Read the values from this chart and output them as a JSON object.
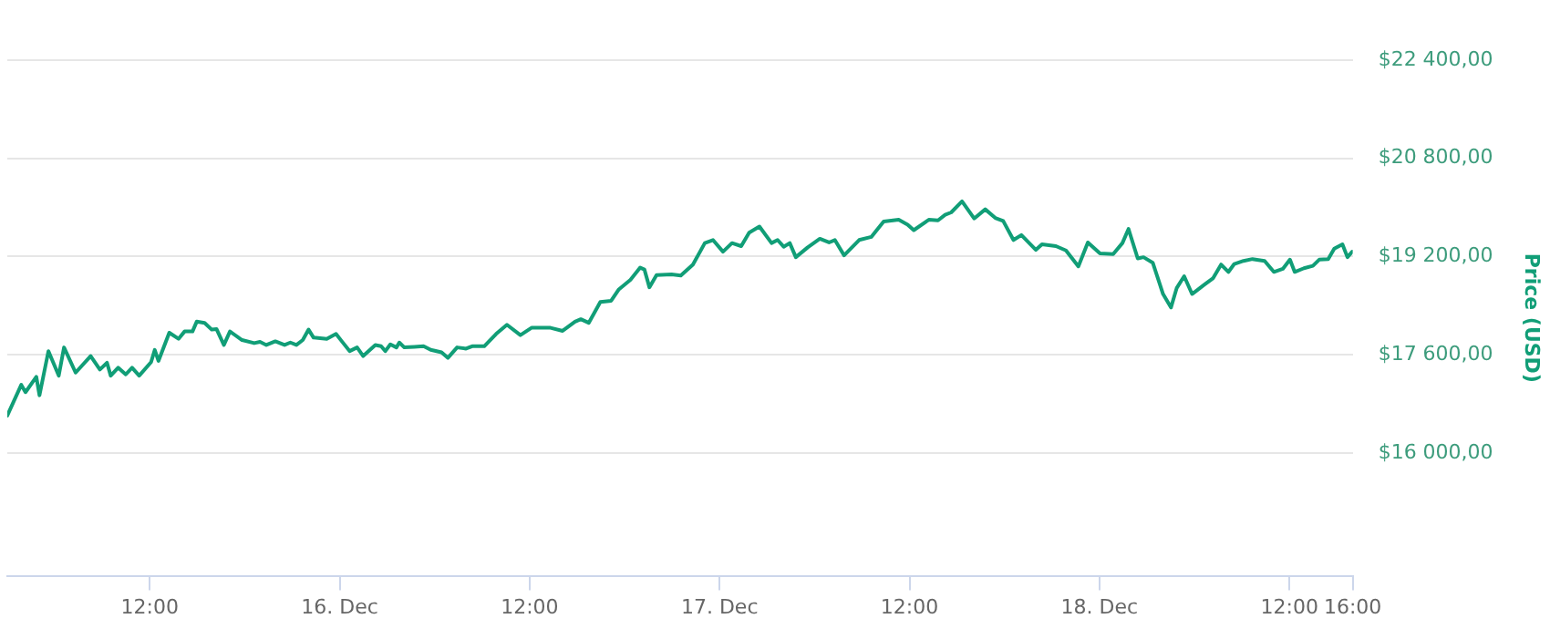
{
  "chart_data": {
    "type": "line",
    "y2label": "Price (USD)",
    "x": [
      "--12-15T03:00",
      "--12-15T03:53",
      "--12-15T04:09",
      "--12-15T04:50",
      "--12-15T05:02",
      "--12-15T05:36",
      "--12-15T06:15",
      "--12-15T06:35",
      "--12-15T07:19",
      "--12-15T08:16",
      "--12-15T08:51",
      "--12-15T09:18",
      "--12-15T09:32",
      "--12-15T10:00",
      "--12-15T10:29",
      "--12-15T10:53",
      "--12-15T11:20",
      "--12-15T12:05",
      "--12-15T12:19",
      "--12-15T12:33",
      "--12-15T13:14",
      "--12-15T13:49",
      "--12-15T14:12",
      "--12-15T14:42",
      "--12-15T14:58",
      "--12-15T15:28",
      "--12-15T15:55",
      "--12-15T16:13",
      "--12-15T16:41",
      "--12-15T17:04",
      "--12-15T17:50",
      "--12-15T18:36",
      "--12-15T18:58",
      "--12-15T19:22",
      "--12-15T19:56",
      "--12-15T20:31",
      "--12-15T20:53",
      "--12-15T21:16",
      "--12-15T21:40",
      "--12-15T22:02",
      "--12-15T22:21",
      "--12-15T23:11",
      "--12-15T23:46",
      "--12-16T00:08",
      "--12-16T00:38",
      "--12-16T01:06",
      "--12-16T01:29",
      "--12-16T02:15",
      "--12-16T02:37",
      "--12-16T02:53",
      "--12-16T03:12",
      "--12-16T03:35",
      "--12-16T03:46",
      "--12-16T04:05",
      "--12-16T04:43",
      "--12-16T05:18",
      "--12-16T05:45",
      "--12-16T06:26",
      "--12-16T06:50",
      "--12-16T07:25",
      "--12-16T07:59",
      "--12-16T08:22",
      "--12-16T09:08",
      "--12-16T09:53",
      "--12-16T10:34",
      "--12-16T11:25",
      "--12-16T12:07",
      "--12-16T13:19",
      "--12-16T14:05",
      "--12-16T14:52",
      "--12-16T15:14",
      "--12-16T15:44",
      "--12-16T16:28",
      "--12-16T17:09",
      "--12-16T17:37",
      "--12-16T18:22",
      "--12-16T18:59",
      "--12-16T19:15",
      "--12-16T19:34",
      "--12-16T20:01",
      "--12-16T20:58",
      "--12-16T21:33",
      "--12-16T22:19",
      "--12-16T23:04",
      "--12-16T23:35",
      "--12-17T00:13",
      "--12-17T00:47",
      "--12-17T01:22",
      "--12-17T01:52",
      "--12-17T02:31",
      "--12-17T03:17",
      "--12-17T03:40",
      "--12-17T04:03",
      "--12-17T04:26",
      "--12-17T04:49",
      "--12-17T05:34",
      "--12-17T06:20",
      "--12-17T06:55",
      "--12-17T07:17",
      "--12-17T07:52",
      "--12-17T08:49",
      "--12-17T09:35",
      "--12-17T10:22",
      "--12-17T11:19",
      "--12-17T11:53",
      "--12-17T12:16",
      "--12-17T13:13",
      "--12-17T13:48",
      "--12-17T14:15",
      "--12-17T14:38",
      "--12-17T15:19",
      "--12-17T16:05",
      "--12-17T16:47",
      "--12-17T17:25",
      "--12-17T17:55",
      "--12-17T18:34",
      "--12-17T19:04",
      "--12-17T19:59",
      "--12-17T20:22",
      "--12-17T21:15",
      "--12-17T21:53",
      "--12-17T22:40",
      "--12-17T23:16",
      "--12-18T00:02",
      "--12-18T00:52",
      "--12-18T01:27",
      "--12-18T01:50",
      "--12-18T02:25",
      "--12-18T02:47",
      "--12-18T03:22",
      "--12-18T04:01",
      "--12-18T04:31",
      "--12-18T04:53",
      "--12-18T05:21",
      "--12-18T05:51",
      "--12-18T06:37",
      "--12-18T07:11",
      "--12-18T07:41",
      "--12-18T08:09",
      "--12-18T08:31",
      "--12-18T09:06",
      "--12-18T09:40",
      "--12-18T10:26",
      "--12-18T11:01",
      "--12-18T11:35",
      "--12-18T12:02",
      "--12-18T12:20",
      "--12-18T12:55",
      "--12-18T13:29",
      "--12-18T13:53",
      "--12-18T14:27",
      "--12-18T14:50",
      "--12-18T15:21",
      "--12-18T15:40",
      "--12-18T15:58"
    ],
    "series": [
      {
        "color": "#119e77",
        "axis": "y2",
        "values": [
          16610,
          17110,
          16990,
          17240,
          16940,
          17660,
          17260,
          17720,
          17310,
          17580,
          17360,
          17470,
          17260,
          17390,
          17280,
          17390,
          17260,
          17480,
          17680,
          17500,
          17960,
          17860,
          17980,
          17980,
          18140,
          18120,
          18010,
          18020,
          17760,
          17980,
          17840,
          17790,
          17810,
          17760,
          17820,
          17760,
          17800,
          17760,
          17840,
          18010,
          17880,
          17860,
          17940,
          17820,
          17660,
          17720,
          17580,
          17760,
          17740,
          17660,
          17770,
          17720,
          17800,
          17720,
          17730,
          17740,
          17680,
          17640,
          17550,
          17720,
          17700,
          17740,
          17740,
          17940,
          18090,
          17920,
          18040,
          18040,
          17990,
          18140,
          18180,
          18120,
          18460,
          18480,
          18660,
          18820,
          19020,
          18990,
          18700,
          18900,
          18910,
          18890,
          19070,
          19420,
          19470,
          19280,
          19420,
          19370,
          19590,
          19690,
          19420,
          19470,
          19360,
          19420,
          19190,
          19350,
          19490,
          19430,
          19470,
          19220,
          19470,
          19520,
          19770,
          19800,
          19720,
          19630,
          19800,
          19790,
          19880,
          19920,
          20100,
          19820,
          19970,
          19830,
          19780,
          19470,
          19550,
          19310,
          19400,
          19370,
          19300,
          19040,
          19430,
          19250,
          19240,
          19420,
          19650,
          19170,
          19190,
          19100,
          18590,
          18370,
          18690,
          18880,
          18590,
          18740,
          18850,
          19070,
          18950,
          19080,
          19130,
          19160,
          19130,
          18950,
          19000,
          19150,
          18950,
          19010,
          19050,
          19150,
          19160,
          19330,
          19400,
          19190,
          19280
        ]
      }
    ],
    "xlim": [
      "--12-15T03:00",
      "--12-18T16:00"
    ],
    "xticks": [
      {
        "value": "--12-15T12:00",
        "label": "12:00"
      },
      {
        "value": "--12-16T00:00",
        "label": "16. Dec"
      },
      {
        "value": "--12-16T12:00",
        "label": "12:00"
      },
      {
        "value": "--12-17T00:00",
        "label": "17. Dec"
      },
      {
        "value": "--12-17T12:00",
        "label": "12:00"
      },
      {
        "value": "--12-18T00:00",
        "label": "18. Dec"
      },
      {
        "value": "--12-18T12:00",
        "label": "12:00"
      },
      {
        "value": "--12-18T16:00",
        "label": "16:00"
      }
    ],
    "y2lim": [
      14000,
      22400
    ],
    "y2ticks": [
      {
        "value": 16000,
        "label": "$16 000,00"
      },
      {
        "value": 17600,
        "label": "$17 600,00"
      },
      {
        "value": 19200,
        "label": "$19 200,00"
      },
      {
        "value": 20800,
        "label": "$20 800,00"
      },
      {
        "value": 22400,
        "label": "$22 400,00"
      }
    ],
    "grid": "y",
    "legend": false,
    "marker": "none",
    "line_style": "solid"
  }
}
